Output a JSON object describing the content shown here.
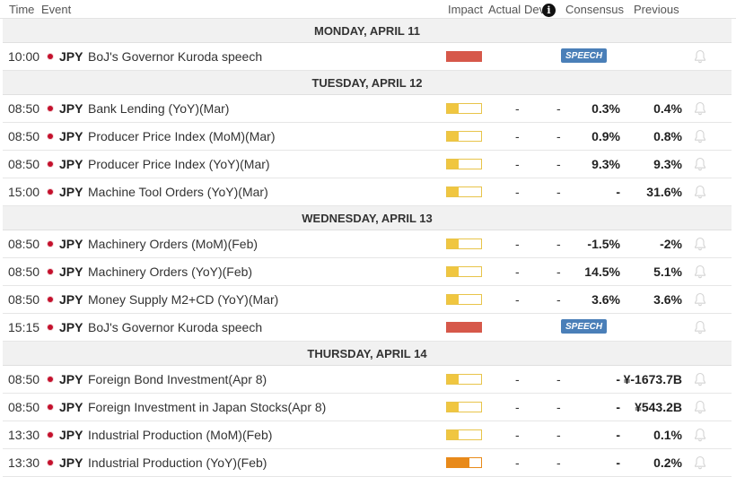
{
  "header": {
    "time": "Time",
    "event": "Event",
    "impact": "Impact",
    "actual": "Actual",
    "dev": "Dev",
    "info_glyph": "i",
    "consensus": "Consensus",
    "previous": "Previous"
  },
  "colors": {
    "low": "#f0c640",
    "medium": "#e88a1a",
    "high": "#d6584a",
    "speech_badge": "#4a7fb8",
    "flag": "#c4102c"
  },
  "days": [
    {
      "label": "MONDAY, APRIL 11",
      "events": [
        {
          "time": "10:00",
          "currency": "JPY",
          "name": "BoJ's Governor Kuroda speech",
          "impact": "high",
          "impact_fill": 1.0,
          "badge": "SPEECH"
        }
      ]
    },
    {
      "label": "TUESDAY, APRIL 12",
      "events": [
        {
          "time": "08:50",
          "currency": "JPY",
          "name": "Bank Lending (YoY)(Mar)",
          "impact": "low",
          "impact_fill": 0.33,
          "actual": "-",
          "dev": "-",
          "consensus": "0.3%",
          "previous": "0.4%"
        },
        {
          "time": "08:50",
          "currency": "JPY",
          "name": "Producer Price Index (MoM)(Mar)",
          "impact": "low",
          "impact_fill": 0.33,
          "actual": "-",
          "dev": "-",
          "consensus": "0.9%",
          "previous": "0.8%"
        },
        {
          "time": "08:50",
          "currency": "JPY",
          "name": "Producer Price Index (YoY)(Mar)",
          "impact": "low",
          "impact_fill": 0.33,
          "actual": "-",
          "dev": "-",
          "consensus": "9.3%",
          "previous": "9.3%"
        },
        {
          "time": "15:00",
          "currency": "JPY",
          "name": "Machine Tool Orders (YoY)(Mar)",
          "impact": "low",
          "impact_fill": 0.33,
          "actual": "-",
          "dev": "-",
          "consensus": "-",
          "previous": "31.6%"
        }
      ]
    },
    {
      "label": "WEDNESDAY, APRIL 13",
      "events": [
        {
          "time": "08:50",
          "currency": "JPY",
          "name": "Machinery Orders (MoM)(Feb)",
          "impact": "low",
          "impact_fill": 0.33,
          "actual": "-",
          "dev": "-",
          "consensus": "-1.5%",
          "previous": "-2%"
        },
        {
          "time": "08:50",
          "currency": "JPY",
          "name": "Machinery Orders (YoY)(Feb)",
          "impact": "low",
          "impact_fill": 0.33,
          "actual": "-",
          "dev": "-",
          "consensus": "14.5%",
          "previous": "5.1%"
        },
        {
          "time": "08:50",
          "currency": "JPY",
          "name": "Money Supply M2+CD (YoY)(Mar)",
          "impact": "low",
          "impact_fill": 0.33,
          "actual": "-",
          "dev": "-",
          "consensus": "3.6%",
          "previous": "3.6%"
        },
        {
          "time": "15:15",
          "currency": "JPY",
          "name": "BoJ's Governor Kuroda speech",
          "impact": "high",
          "impact_fill": 1.0,
          "badge": "SPEECH"
        }
      ]
    },
    {
      "label": "THURSDAY, APRIL 14",
      "events": [
        {
          "time": "08:50",
          "currency": "JPY",
          "name": "Foreign Bond Investment(Apr 8)",
          "impact": "low",
          "impact_fill": 0.33,
          "actual": "-",
          "dev": "-",
          "consensus": "-",
          "previous": "¥-1673.7B"
        },
        {
          "time": "08:50",
          "currency": "JPY",
          "name": "Foreign Investment in Japan Stocks(Apr 8)",
          "impact": "low",
          "impact_fill": 0.33,
          "actual": "-",
          "dev": "-",
          "consensus": "-",
          "previous": "¥543.2B"
        },
        {
          "time": "13:30",
          "currency": "JPY",
          "name": "Industrial Production (MoM)(Feb)",
          "impact": "low",
          "impact_fill": 0.33,
          "actual": "-",
          "dev": "-",
          "consensus": "-",
          "previous": "0.1%"
        },
        {
          "time": "13:30",
          "currency": "JPY",
          "name": "Industrial Production (YoY)(Feb)",
          "impact": "medium",
          "impact_fill": 0.66,
          "actual": "-",
          "dev": "-",
          "consensus": "-",
          "previous": "0.2%"
        }
      ]
    }
  ]
}
